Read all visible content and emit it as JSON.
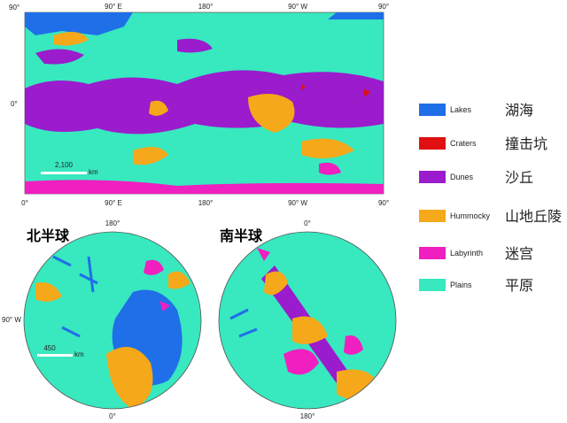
{
  "global_map": {
    "lat_labels": [
      "90°",
      "0°"
    ],
    "top_lon_labels": [
      "90° E",
      "180°",
      "90° W",
      "90°"
    ],
    "bottom_lon_labels": [
      "0°",
      "90° E",
      "180°",
      "90° W",
      "90°"
    ],
    "scale_value": "2,100",
    "scale_unit": "km"
  },
  "north_map": {
    "title": "北半球",
    "top_label": "180°",
    "left_label": "90° W",
    "bottom_label": "0°",
    "scale_value": "450",
    "scale_unit": "km"
  },
  "south_map": {
    "title": "南半球",
    "top_label": "0°",
    "bottom_label": "180°"
  },
  "legend": {
    "items": [
      {
        "label": "Lakes",
        "label_zh": "湖海",
        "color": "#1f6fe8"
      },
      {
        "label": "Craters",
        "label_zh": "撞击坑",
        "color": "#e01010"
      },
      {
        "label": "Dunes",
        "label_zh": "沙丘",
        "color": "#9a1ccc"
      },
      {
        "label": "Hummocky",
        "label_zh": "山地丘陵",
        "color": "#f5a81a"
      },
      {
        "label": "Labyrinth",
        "label_zh": "迷宫",
        "color": "#f01fc0"
      },
      {
        "label": "Plains",
        "label_zh": "平原",
        "color": "#38e8bf"
      }
    ]
  }
}
